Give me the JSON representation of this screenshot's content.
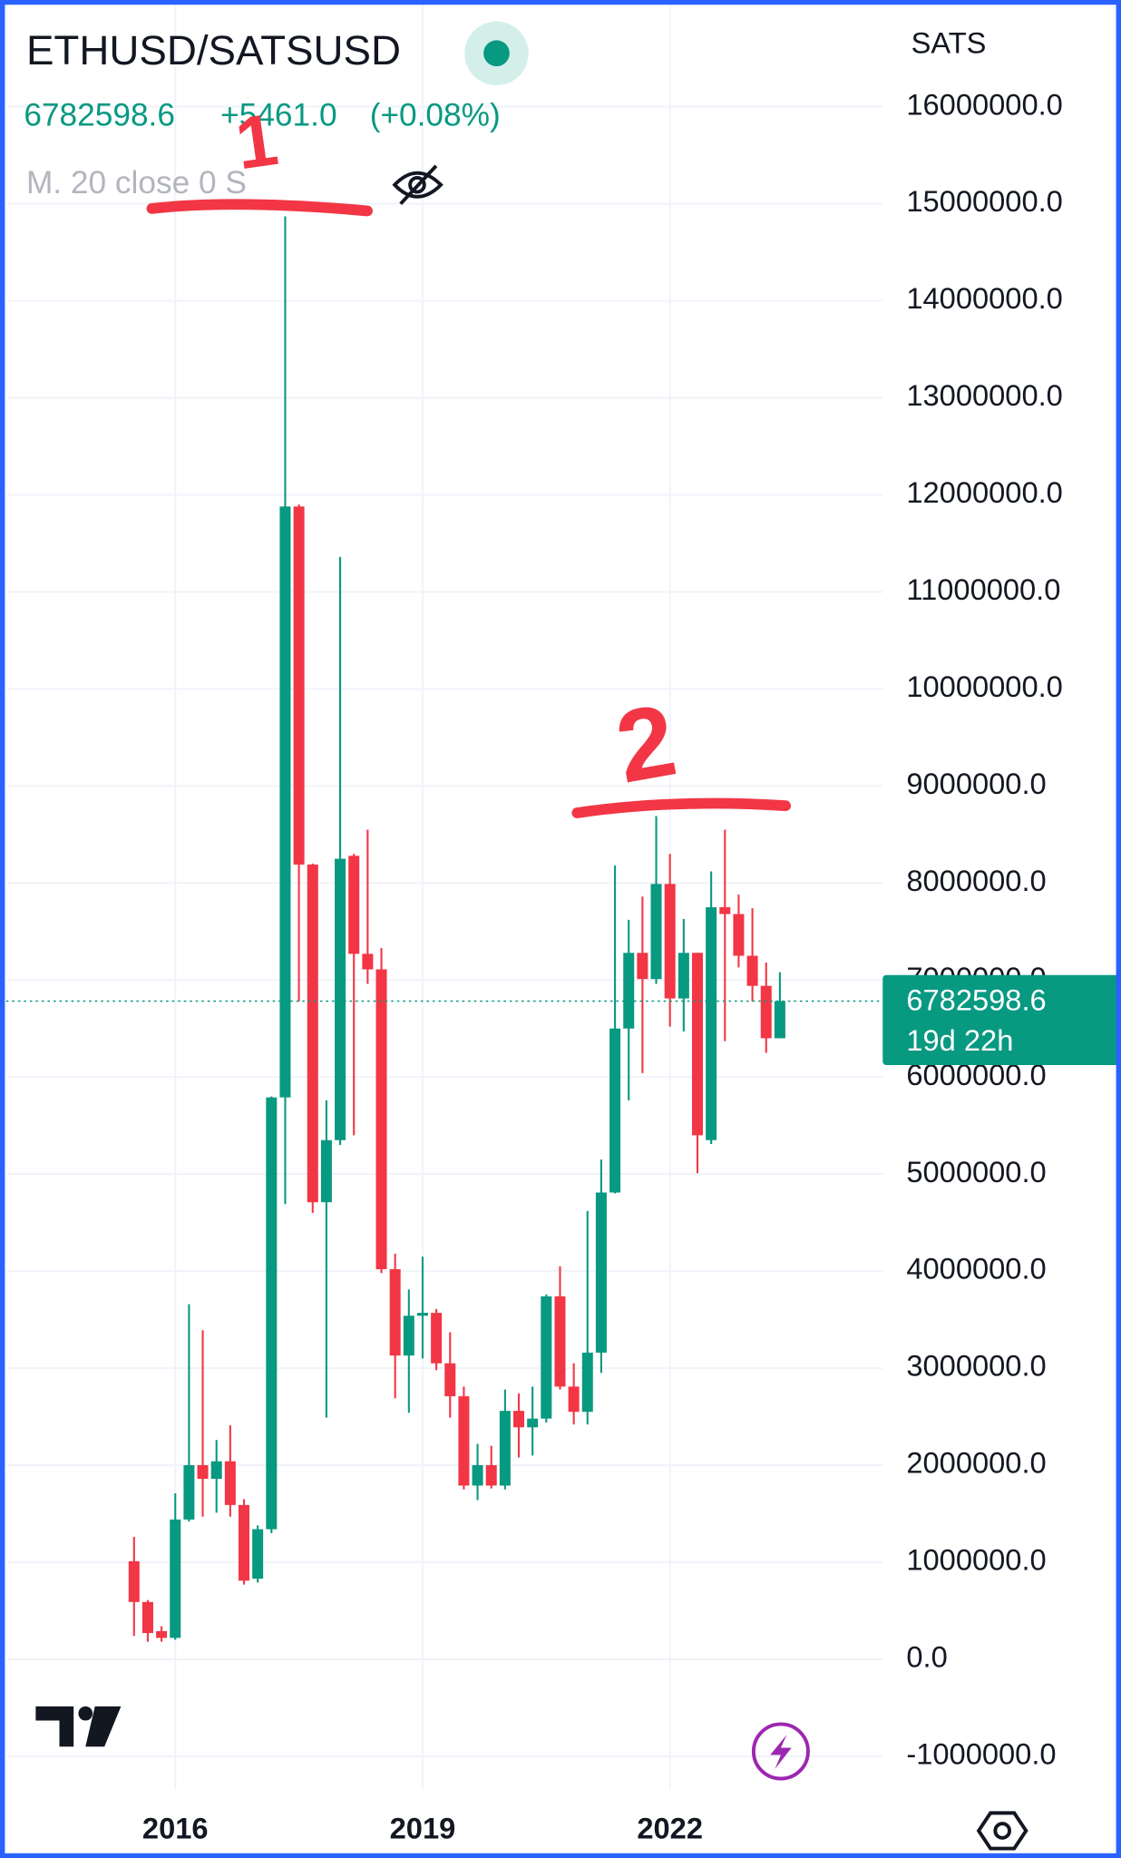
{
  "chart_data": {
    "type": "candlestick",
    "title": "ETHUSD/SATSUSD",
    "last_price": 6782598.6,
    "change": {
      "value": 5461,
      "label": "+5461.0"
    },
    "change_pct": {
      "value": 0.08,
      "label": "(+0.08%)"
    },
    "indicator": "M. 20 close 0 S",
    "y_axis_label": "SATS",
    "countdown": "19d 22h",
    "annotations": [
      "1",
      "2"
    ],
    "up_color": "#089981",
    "down_color": "#f23645",
    "grid": true,
    "categories": [
      null,
      null,
      null,
      "2016",
      null,
      null,
      null,
      null,
      null,
      null,
      null,
      null,
      null,
      null,
      null,
      null,
      null,
      null,
      null,
      null,
      null,
      "2019",
      null,
      null,
      null,
      null,
      null,
      null,
      null,
      null,
      null,
      null,
      null,
      null,
      null,
      null,
      null,
      null,
      null,
      "2022",
      null,
      null,
      null,
      null,
      null,
      null,
      null,
      null
    ],
    "open": [
      1010000,
      590000,
      290000,
      220000,
      1440000,
      2000000,
      1860000,
      2040000,
      1590000,
      830000,
      1340000,
      5790000,
      11880000,
      8190000,
      4710000,
      5350000,
      8280000,
      7270000,
      7110000,
      4020000,
      3130000,
      3540000,
      3570000,
      3050000,
      2710000,
      1790000,
      2000000,
      1790000,
      2560000,
      2390000,
      2480000,
      3740000,
      2810000,
      2550000,
      3160000,
      4810000,
      6500000,
      7280000,
      7010000,
      7990000,
      6810000,
      7280000,
      5350000,
      7750000,
      7680000,
      7250000,
      6940000,
      6400000
    ],
    "high": [
      1260000,
      610000,
      340000,
      1710000,
      3660000,
      3390000,
      2260000,
      2410000,
      1650000,
      1380000,
      5800000,
      14870000,
      11900000,
      8200000,
      5760000,
      11360000,
      8300000,
      8550000,
      7330000,
      4180000,
      3810000,
      4150000,
      3610000,
      3370000,
      2810000,
      2220000,
      2200000,
      2780000,
      2740000,
      2810000,
      3760000,
      4050000,
      3050000,
      4620000,
      5150000,
      8180000,
      7620000,
      7860000,
      8690000,
      8300000,
      7630000,
      7280000,
      8120000,
      8550000,
      7880000,
      7740000,
      7180000,
      7080000
    ],
    "low": [
      240000,
      180000,
      180000,
      200000,
      1420000,
      1470000,
      1510000,
      1470000,
      770000,
      790000,
      1300000,
      4690000,
      6780000,
      4600000,
      2490000,
      5300000,
      5400000,
      6960000,
      3980000,
      2690000,
      2540000,
      3100000,
      2980000,
      2490000,
      1750000,
      1640000,
      1760000,
      1750000,
      2080000,
      2100000,
      2440000,
      2780000,
      2420000,
      2420000,
      2950000,
      4800000,
      5760000,
      6040000,
      6960000,
      6520000,
      6470000,
      5010000,
      5310000,
      6370000,
      7130000,
      6780000,
      6250000,
      6400000
    ],
    "close": [
      590000,
      270000,
      220000,
      1440000,
      2000000,
      1860000,
      2040000,
      1590000,
      810000,
      1340000,
      5790000,
      11880000,
      8190000,
      4710000,
      5350000,
      8250000,
      7270000,
      7110000,
      4020000,
      3130000,
      3540000,
      3570000,
      3050000,
      2710000,
      1790000,
      2000000,
      1790000,
      2560000,
      2390000,
      2480000,
      3740000,
      2810000,
      2550000,
      3160000,
      4810000,
      6500000,
      7280000,
      7010000,
      7990000,
      6810000,
      7280000,
      5400000,
      7750000,
      7680000,
      7250000,
      6940000,
      6400000,
      6782598.6
    ],
    "ylim": [
      -1340000,
      17100000
    ],
    "yticks": [
      {
        "value": 16000000,
        "label": "16000000.0"
      },
      {
        "value": 15000000,
        "label": "15000000.0"
      },
      {
        "value": 14000000,
        "label": "14000000.0"
      },
      {
        "value": 13000000,
        "label": "13000000.0"
      },
      {
        "value": 12000000,
        "label": "12000000.0"
      },
      {
        "value": 11000000,
        "label": "11000000.0"
      },
      {
        "value": 10000000,
        "label": "10000000.0"
      },
      {
        "value": 9000000,
        "label": "9000000.0"
      },
      {
        "value": 8000000,
        "label": "8000000.0"
      },
      {
        "value": 7000000,
        "label": "7000000.0"
      },
      {
        "value": 6000000,
        "label": "6000000.0"
      },
      {
        "value": 5000000,
        "label": "5000000.0"
      },
      {
        "value": 4000000,
        "label": "4000000.0"
      },
      {
        "value": 3000000,
        "label": "3000000.0"
      },
      {
        "value": 2000000,
        "label": "2000000.0"
      },
      {
        "value": 1000000,
        "label": "1000000.0"
      },
      {
        "value": 0,
        "label": "0.0"
      },
      {
        "value": -1000000,
        "label": "-1000000.0"
      }
    ]
  }
}
